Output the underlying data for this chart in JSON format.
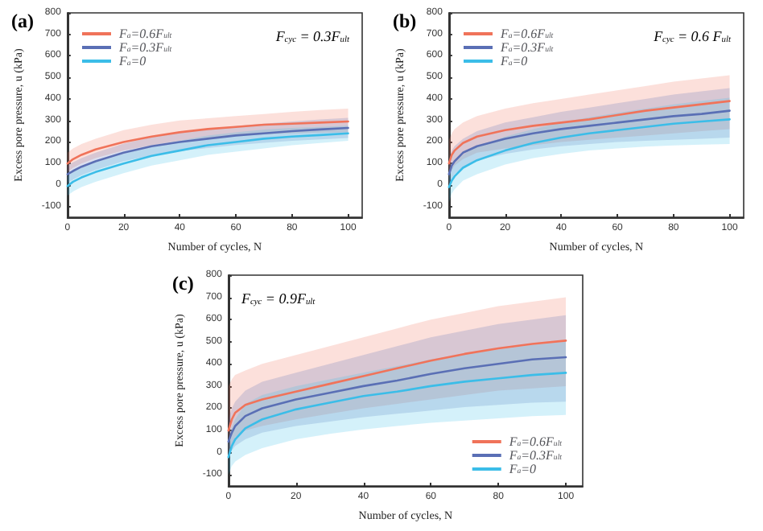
{
  "chart_data": [
    {
      "type": "line",
      "title": "(a)",
      "annotations": [
        "F$_{cyc}$ = 0.3F$_{ult}$"
      ],
      "xlabel": "Number of cycles, N",
      "ylabel": "Excess pore pressure, u (kPa)",
      "x": [
        0,
        2,
        5,
        10,
        20,
        30,
        40,
        50,
        60,
        70,
        80,
        90,
        100
      ],
      "xlim": [
        0,
        105
      ],
      "xticks": [
        0,
        20,
        40,
        60,
        80,
        100
      ],
      "ylim": [
        -150,
        800
      ],
      "yticks": [
        -100,
        0,
        100,
        200,
        300,
        400,
        500,
        600,
        700,
        800
      ],
      "grid": false,
      "legend": "top left",
      "marker": "none",
      "line_style": "solid",
      "series": [
        {
          "name": "F$_{a}$=0.6F$_{ult}$",
          "color": "#f0735a",
          "values": [
            100,
            120,
            140,
            165,
            200,
            225,
            245,
            260,
            270,
            280,
            285,
            290,
            295
          ],
          "lower": [
            60,
            80,
            100,
            125,
            160,
            185,
            205,
            220,
            228,
            235,
            240,
            243,
            245
          ],
          "upper": [
            150,
            170,
            190,
            215,
            255,
            280,
            300,
            310,
            320,
            330,
            340,
            348,
            355
          ]
        },
        {
          "name": "F$_{a}$=0.3F$_{ult}$",
          "color": "#5a6fb5",
          "values": [
            50,
            65,
            85,
            110,
            150,
            180,
            200,
            215,
            230,
            240,
            250,
            258,
            265
          ],
          "lower": [
            10,
            25,
            45,
            70,
            110,
            138,
            158,
            172,
            186,
            196,
            205,
            212,
            218
          ],
          "upper": [
            90,
            105,
            125,
            150,
            192,
            222,
            244,
            260,
            274,
            285,
            295,
            304,
            312
          ]
        },
        {
          "name": "F$_{a}$=0",
          "color": "#3bbde8",
          "values": [
            -5,
            15,
            35,
            60,
            100,
            135,
            160,
            185,
            200,
            215,
            225,
            232,
            240
          ],
          "lower": [
            -50,
            -30,
            -10,
            15,
            55,
            90,
            115,
            140,
            155,
            170,
            185,
            195,
            205
          ],
          "upper": [
            40,
            60,
            80,
            105,
            145,
            180,
            205,
            230,
            245,
            258,
            265,
            270,
            275
          ]
        }
      ]
    },
    {
      "type": "line",
      "title": "(b)",
      "annotations": [
        "F$_{cyc}$ = 0.6 F$_{ult}$"
      ],
      "xlabel": "Number of cycles, N",
      "ylabel": "Excess pore pressure, u (kPa)",
      "x": [
        0,
        1,
        2,
        5,
        10,
        20,
        30,
        40,
        50,
        60,
        70,
        80,
        90,
        100
      ],
      "xlim": [
        0,
        105
      ],
      "xticks": [
        0,
        20,
        40,
        60,
        80,
        100
      ],
      "ylim": [
        -150,
        800
      ],
      "yticks": [
        -100,
        0,
        100,
        200,
        300,
        400,
        500,
        600,
        700,
        800
      ],
      "grid": false,
      "legend": "top left",
      "marker": "none",
      "line_style": "solid",
      "series": [
        {
          "name": "F$_{a}$=0.6F$_{ult}$",
          "color": "#f0735a",
          "values": [
            100,
            140,
            160,
            195,
            225,
            255,
            275,
            290,
            305,
            325,
            345,
            360,
            375,
            390
          ],
          "lower": [
            30,
            70,
            90,
            120,
            150,
            170,
            185,
            200,
            210,
            220,
            230,
            240,
            250,
            260
          ],
          "upper": [
            210,
            240,
            260,
            290,
            320,
            355,
            380,
            400,
            420,
            440,
            460,
            480,
            495,
            510
          ]
        },
        {
          "name": "F$_{a}$=0.3F$_{ult}$",
          "color": "#5a6fb5",
          "values": [
            50,
            90,
            110,
            150,
            180,
            215,
            240,
            260,
            275,
            290,
            305,
            320,
            330,
            345
          ],
          "lower": [
            -20,
            30,
            50,
            85,
            115,
            145,
            165,
            180,
            190,
            200,
            205,
            210,
            215,
            220
          ],
          "upper": [
            120,
            160,
            180,
            215,
            250,
            290,
            315,
            340,
            360,
            380,
            400,
            420,
            435,
            450
          ]
        },
        {
          "name": "F$_{a}$=0",
          "color": "#3bbde8",
          "values": [
            -10,
            20,
            40,
            80,
            115,
            160,
            195,
            220,
            240,
            255,
            270,
            285,
            295,
            305
          ],
          "lower": [
            -80,
            -40,
            -20,
            20,
            50,
            95,
            125,
            145,
            160,
            170,
            178,
            184,
            188,
            190
          ],
          "upper": [
            60,
            80,
            100,
            140,
            180,
            225,
            260,
            290,
            315,
            335,
            355,
            375,
            390,
            405
          ]
        }
      ]
    },
    {
      "type": "line",
      "title": "(c)",
      "annotations": [
        "F$_{cyc}$ = 0.9F$_{ult}$"
      ],
      "xlabel": "Number of cycles, N",
      "ylabel": "Excess pore pressure, u (kPa)",
      "x": [
        0,
        1,
        2,
        5,
        10,
        20,
        30,
        40,
        50,
        60,
        70,
        80,
        90,
        100
      ],
      "xlim": [
        0,
        105
      ],
      "xticks": [
        0,
        20,
        40,
        60,
        80,
        100
      ],
      "ylim": [
        -150,
        800
      ],
      "yticks": [
        -100,
        0,
        100,
        200,
        300,
        400,
        500,
        600,
        700,
        800
      ],
      "grid": false,
      "legend": "bottom right",
      "marker": "none",
      "line_style": "solid",
      "series": [
        {
          "name": "F$_{a}$=0.6F$_{ult}$",
          "color": "#f0735a",
          "values": [
            100,
            150,
            180,
            215,
            240,
            275,
            310,
            345,
            380,
            415,
            445,
            470,
            490,
            505
          ],
          "lower": [
            -20,
            40,
            70,
            100,
            120,
            150,
            175,
            200,
            220,
            240,
            260,
            280,
            290,
            300
          ],
          "upper": [
            300,
            330,
            350,
            370,
            400,
            440,
            480,
            520,
            560,
            600,
            630,
            660,
            680,
            700
          ]
        },
        {
          "name": "F$_{a}$=0.3F$_{ult}$",
          "color": "#5a6fb5",
          "values": [
            50,
            90,
            120,
            165,
            200,
            240,
            270,
            300,
            325,
            355,
            380,
            400,
            420,
            430
          ],
          "lower": [
            -30,
            10,
            30,
            60,
            90,
            120,
            140,
            160,
            175,
            190,
            205,
            215,
            225,
            230
          ],
          "upper": [
            150,
            200,
            230,
            280,
            320,
            360,
            400,
            440,
            480,
            520,
            550,
            580,
            600,
            620
          ]
        },
        {
          "name": "F$_{a}$=0",
          "color": "#3bbde8",
          "values": [
            -20,
            30,
            60,
            110,
            150,
            195,
            225,
            255,
            275,
            300,
            320,
            335,
            350,
            360
          ],
          "lower": [
            -100,
            -60,
            -40,
            -10,
            20,
            60,
            85,
            105,
            120,
            135,
            145,
            155,
            165,
            170
          ],
          "upper": [
            60,
            110,
            150,
            220,
            260,
            300,
            330,
            360,
            390,
            420,
            445,
            465,
            485,
            500
          ]
        }
      ]
    }
  ]
}
